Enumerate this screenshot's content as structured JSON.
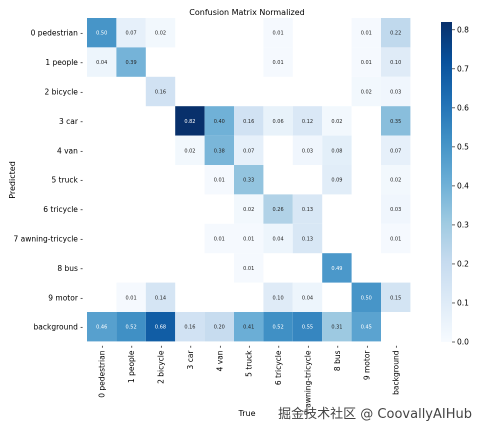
{
  "chart_data": {
    "type": "heatmap",
    "title": "Confusion Matrix Normalized",
    "xlabel": "True",
    "ylabel": "Predicted",
    "x_categories": [
      "0 pedestrian",
      "1 people",
      "2 bicycle",
      "3 car",
      "4 van",
      "5 truck",
      "6 tricycle",
      "7 awning-tricycle",
      "8 bus",
      "9 motor",
      "background"
    ],
    "y_categories": [
      "0 pedestrian",
      "1 people",
      "2 bicycle",
      "3 car",
      "4 van",
      "5 truck",
      "6 tricycle",
      "7 awning-tricycle",
      "8 bus",
      "9 motor",
      "background"
    ],
    "values": [
      [
        0.5,
        0.07,
        0.02,
        null,
        null,
        null,
        0.01,
        null,
        null,
        0.01,
        0.22
      ],
      [
        0.04,
        0.39,
        null,
        null,
        null,
        null,
        0.01,
        null,
        null,
        0.01,
        0.1
      ],
      [
        null,
        null,
        0.16,
        null,
        null,
        null,
        null,
        null,
        null,
        0.02,
        0.03
      ],
      [
        null,
        null,
        null,
        0.82,
        0.4,
        0.16,
        0.06,
        0.12,
        0.02,
        null,
        0.35
      ],
      [
        null,
        null,
        null,
        0.02,
        0.38,
        0.07,
        null,
        0.03,
        0.08,
        null,
        0.07
      ],
      [
        null,
        null,
        null,
        null,
        0.01,
        0.33,
        null,
        null,
        0.09,
        null,
        0.02
      ],
      [
        null,
        null,
        null,
        null,
        null,
        0.02,
        0.26,
        0.13,
        null,
        null,
        0.03
      ],
      [
        null,
        null,
        null,
        null,
        0.01,
        0.01,
        0.04,
        0.13,
        null,
        null,
        0.01
      ],
      [
        null,
        null,
        null,
        null,
        null,
        0.01,
        null,
        null,
        0.49,
        null,
        null
      ],
      [
        null,
        0.01,
        0.14,
        null,
        null,
        null,
        0.1,
        0.04,
        null,
        0.5,
        0.15
      ],
      [
        0.46,
        0.52,
        0.68,
        0.16,
        0.2,
        0.41,
        0.52,
        0.55,
        0.31,
        0.45,
        null
      ]
    ],
    "colorbar": {
      "min": 0.0,
      "max": 0.82,
      "ticks": [
        "0.0",
        "0.1",
        "0.2",
        "0.3",
        "0.4",
        "0.5",
        "0.6",
        "0.7",
        "0.8"
      ]
    },
    "colormap": [
      "#f7fbff",
      "#deebf7",
      "#c6dbef",
      "#9ecae1",
      "#6baed6",
      "#4292c6",
      "#2171b5",
      "#08519c",
      "#08306b"
    ]
  },
  "watermark": "掘金技术社区 @ CoovallyAIHub"
}
